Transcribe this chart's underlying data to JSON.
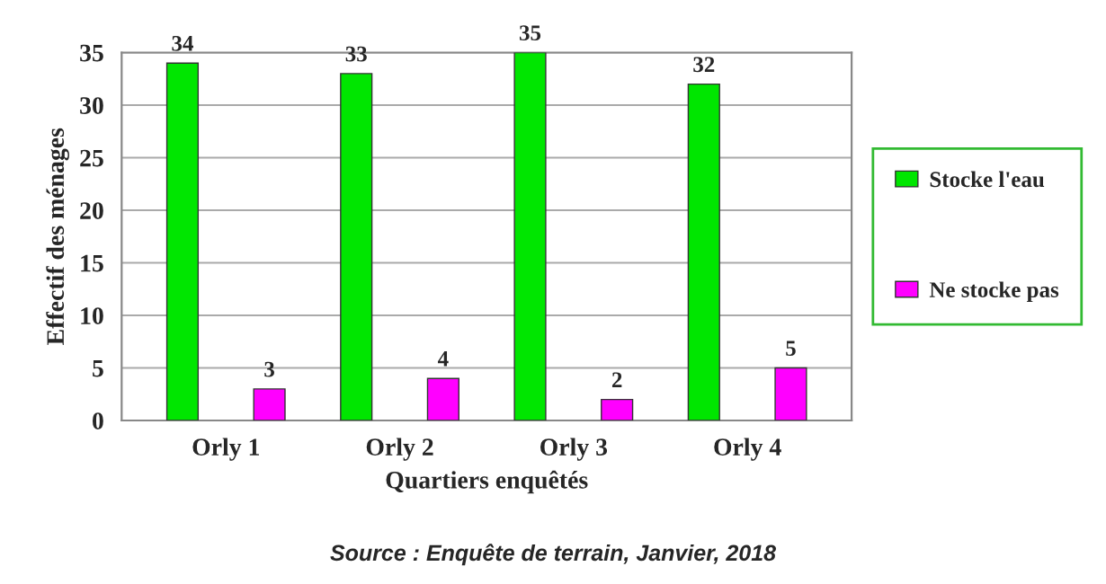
{
  "chart_data": {
    "type": "bar",
    "categories": [
      "Orly 1",
      "Orly 2",
      "Orly 3",
      "Orly 4"
    ],
    "series": [
      {
        "name": "Stocke l'eau",
        "color": "#00e600",
        "values": [
          34,
          33,
          35,
          32
        ]
      },
      {
        "name": "Ne stocke pas",
        "color": "#ff00ff",
        "values": [
          3,
          4,
          2,
          5
        ]
      }
    ],
    "xlabel": "Quartiers enquêtés",
    "ylabel": "Effectif des ménages",
    "ylim": [
      0,
      35
    ],
    "yticks": [
      0,
      5,
      10,
      15,
      20,
      25,
      30,
      35
    ],
    "grid": "y",
    "legend": "right",
    "data_labels": true,
    "annotations": [
      "Source : Enquête de terrain, Janvier, 2018"
    ]
  }
}
